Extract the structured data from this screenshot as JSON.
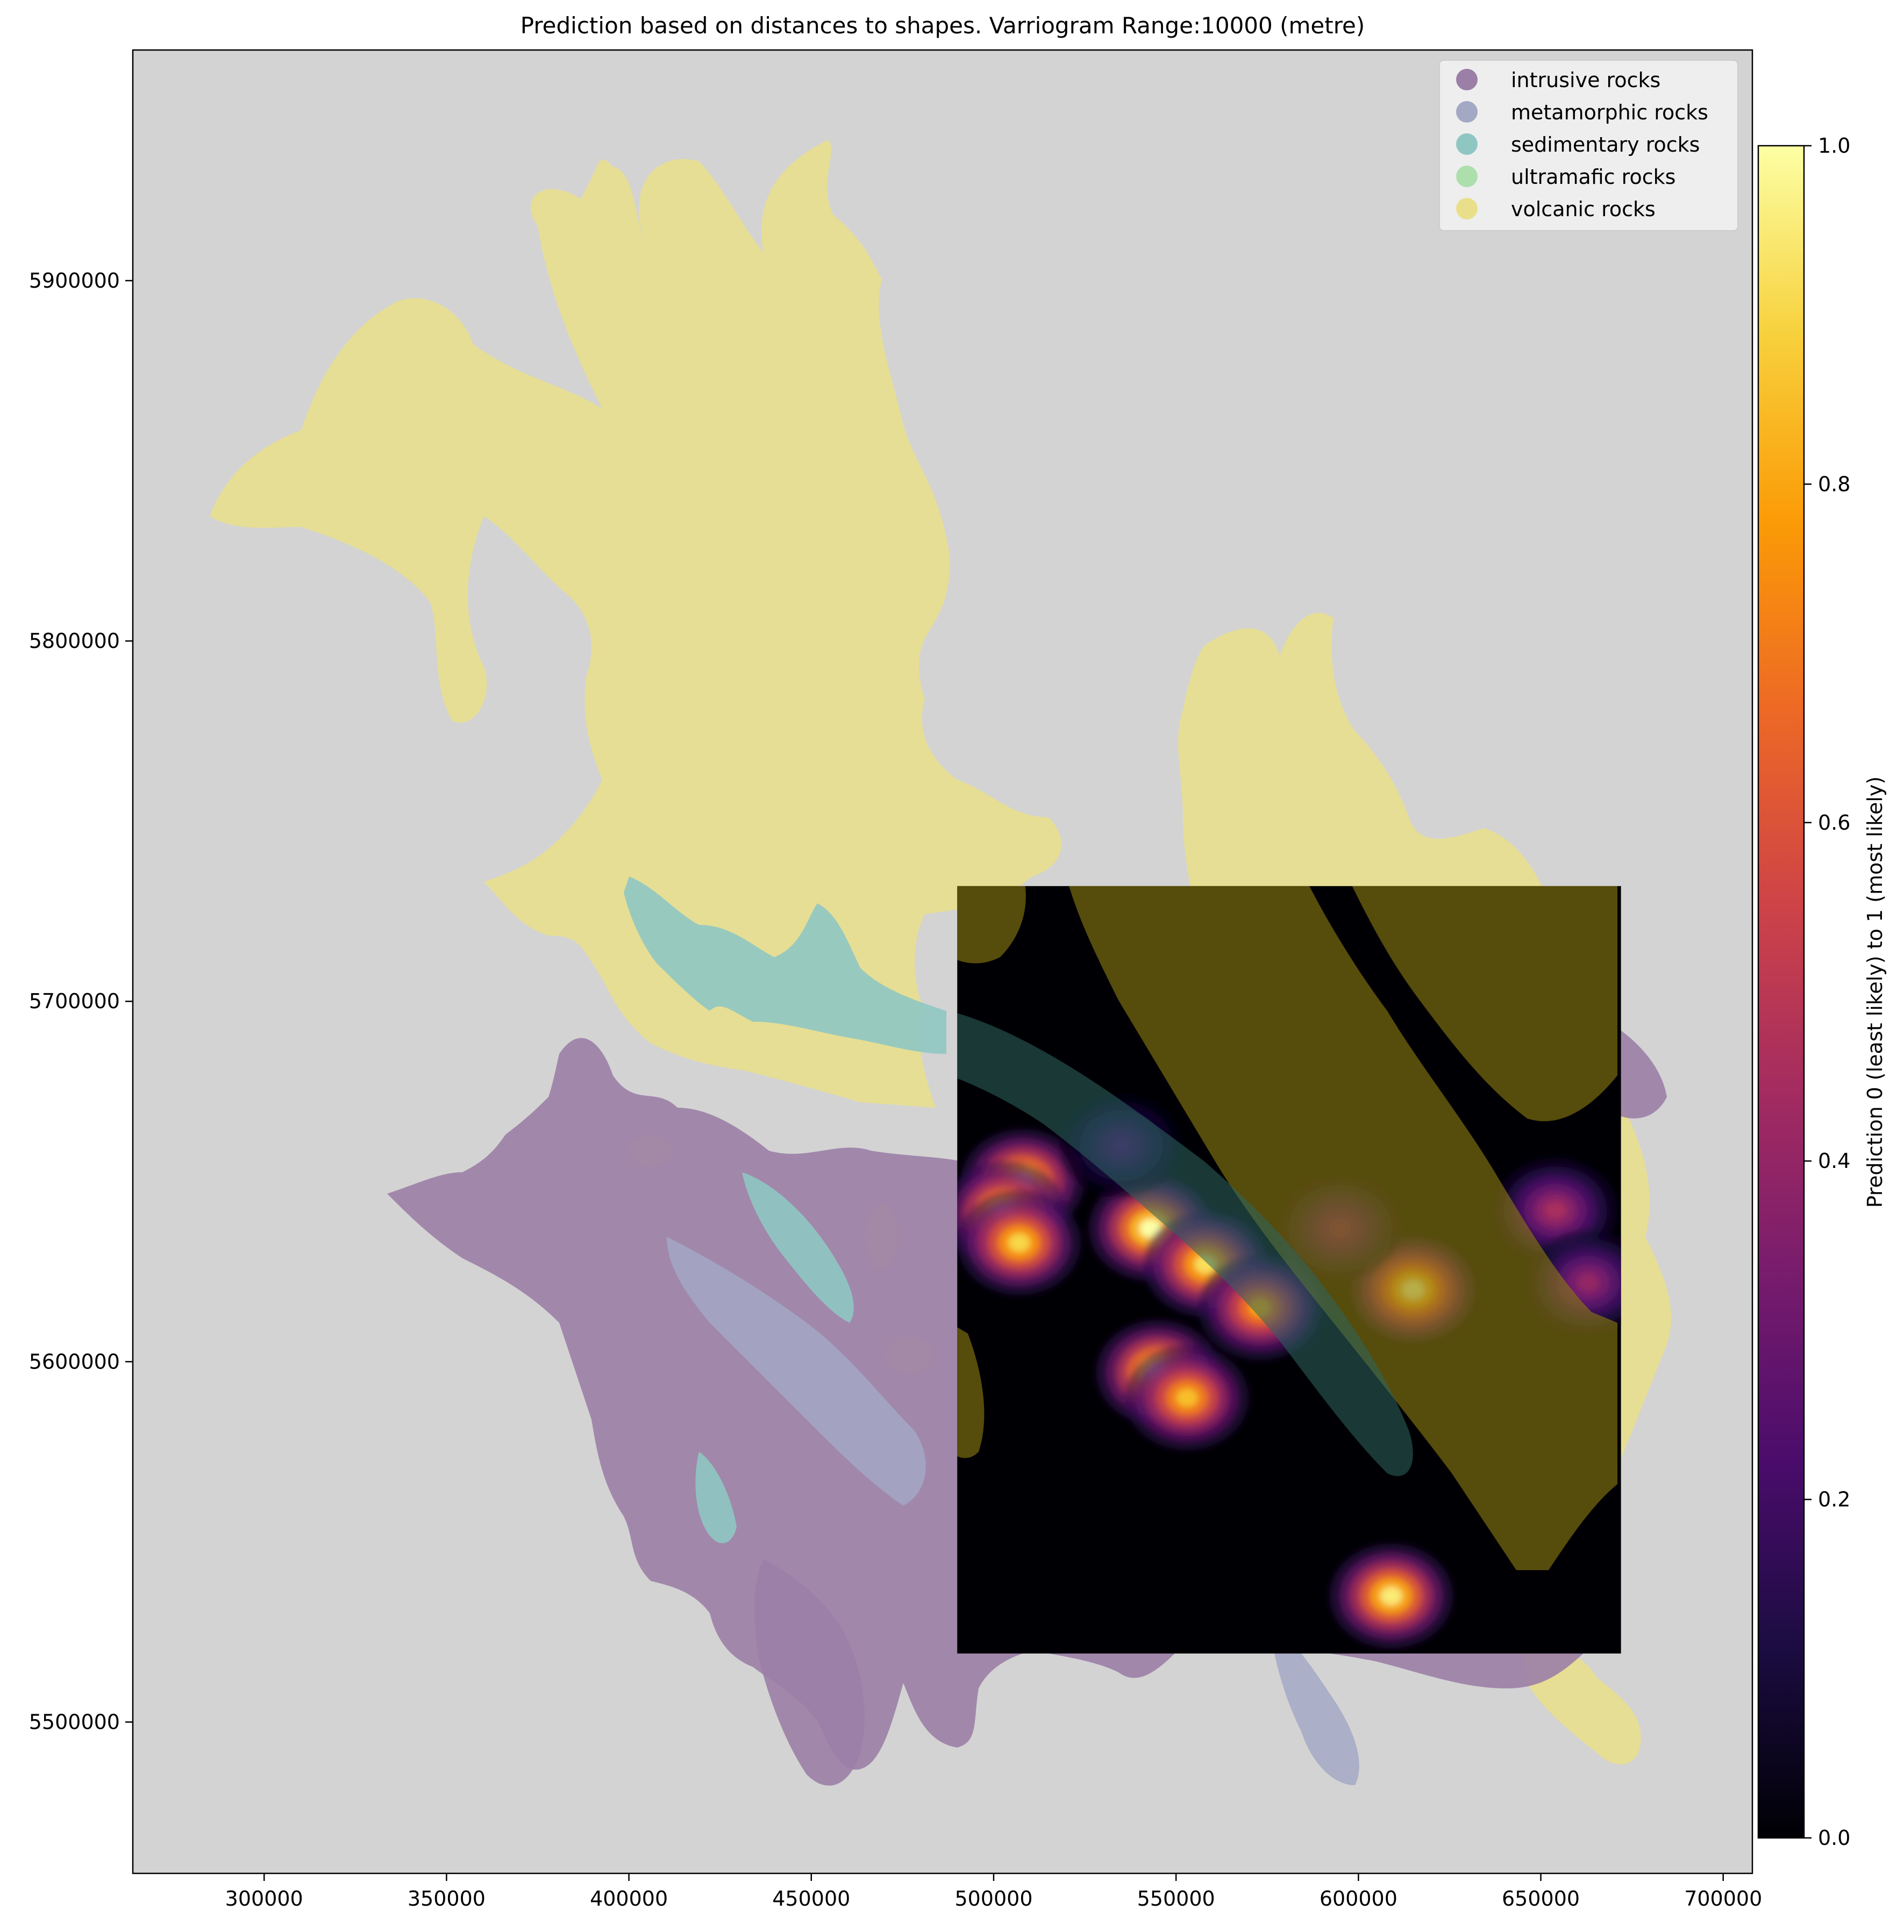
{
  "chart_data": {
    "type": "heatmap",
    "title": "Prediction based on distances to shapes. Varriogram Range:10000 (metre)",
    "xlabel": "",
    "ylabel": "",
    "xlim": [
      264000,
      708000
    ],
    "ylim": [
      5458000,
      5964000
    ],
    "x_ticks": [
      300000,
      350000,
      400000,
      450000,
      500000,
      550000,
      600000,
      650000,
      700000
    ],
    "y_ticks": [
      5500000,
      5600000,
      5700000,
      5800000,
      5900000
    ],
    "x_tick_labels": [
      "300000",
      "350000",
      "400000",
      "450000",
      "500000",
      "550000",
      "600000",
      "650000",
      "700000"
    ],
    "y_tick_labels": [
      "5500000",
      "5600000",
      "5700000",
      "5800000",
      "5900000"
    ],
    "grid": false,
    "background_color": "#d3d3d3",
    "legend": {
      "placement": "top-right",
      "entries": [
        {
          "label": "intrusive rocks",
          "color": "#9b7fa6"
        },
        {
          "label": "metamorphic rocks",
          "color": "#a3a8c4"
        },
        {
          "label": "sedimentary rocks",
          "color": "#8fc6c2"
        },
        {
          "label": "ultramafic rocks",
          "color": "#addfac"
        },
        {
          "label": "volcanic rocks",
          "color": "#e9df8a"
        }
      ]
    },
    "prediction_grid_extent": {
      "x": [
        490000,
        672000
      ],
      "y": [
        5519000,
        5732000
      ]
    },
    "hotspots": [
      {
        "x": 508000,
        "y": 5650000,
        "value": 0.95
      },
      {
        "x": 503000,
        "y": 5641000,
        "value": 0.98
      },
      {
        "x": 507000,
        "y": 5633000,
        "value": 0.9
      },
      {
        "x": 543000,
        "y": 5637000,
        "value": 1.0
      },
      {
        "x": 558000,
        "y": 5627000,
        "value": 0.92
      },
      {
        "x": 573000,
        "y": 5615000,
        "value": 0.8
      },
      {
        "x": 545000,
        "y": 5597000,
        "value": 1.0
      },
      {
        "x": 553000,
        "y": 5590000,
        "value": 0.85
      },
      {
        "x": 615000,
        "y": 5620000,
        "value": 1.0
      },
      {
        "x": 609000,
        "y": 5535000,
        "value": 0.95
      },
      {
        "x": 654000,
        "y": 5642000,
        "value": 0.45
      },
      {
        "x": 663000,
        "y": 5622000,
        "value": 0.4
      },
      {
        "x": 595000,
        "y": 5637000,
        "value": 0.3
      },
      {
        "x": 535000,
        "y": 5660000,
        "value": 0.22
      }
    ],
    "colorbar": {
      "label": "Prediction 0 (least likely) to 1 (most likely)",
      "colormap": "inferno",
      "range": [
        0,
        1
      ],
      "ticks": [
        0.0,
        0.2,
        0.4,
        0.6,
        0.8,
        1.0
      ],
      "tick_labels": [
        "0.0",
        "0.2",
        "0.4",
        "0.6",
        "0.8",
        "1.0"
      ],
      "colors": [
        "#000004",
        "#1b0c41",
        "#4a0c6b",
        "#781c6d",
        "#a52c60",
        "#cf4446",
        "#ed6925",
        "#fb9b06",
        "#f7d13d",
        "#fcffa4"
      ]
    }
  }
}
